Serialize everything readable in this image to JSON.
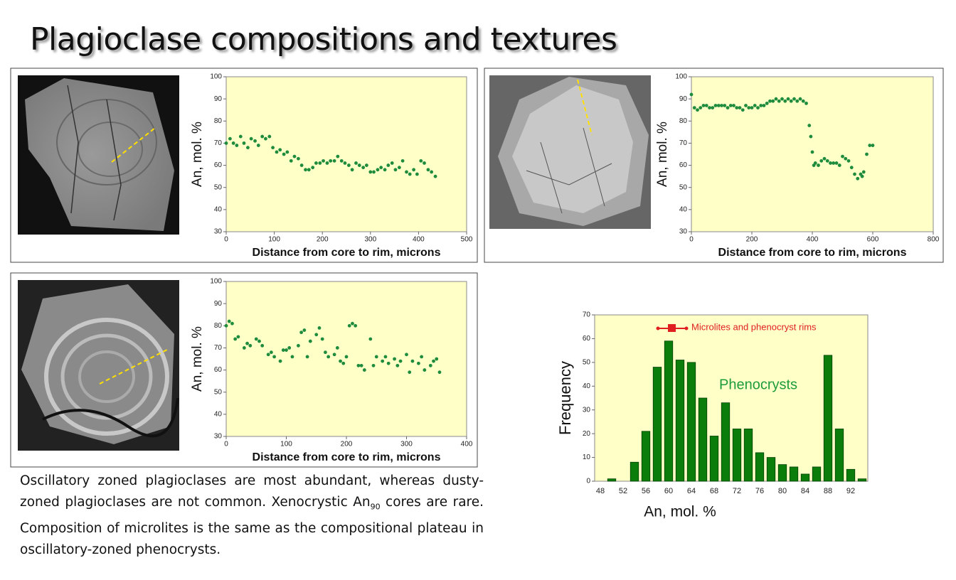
{
  "title": "Plagioclase compositions and textures",
  "caption": [
    "Oscillatory zoned plagioclases are most abundant, whereas dusty-zoned plagioclases are not common. Xenocrystic An",
    "90",
    " cores are rare. Composition of microlites is the same as the compositional plateau in oscillatory-zoned phenocrysts."
  ],
  "chart_data": [
    {
      "type": "scatter",
      "xlabel": "Distance from core to rim, microns",
      "ylabel": "An, mol. %",
      "color": "#1e8c3c",
      "x": [
        0,
        8,
        15,
        22,
        30,
        37,
        45,
        52,
        60,
        67,
        75,
        82,
        90,
        97,
        105,
        112,
        120,
        127,
        135,
        142,
        150,
        157,
        165,
        172,
        180,
        187,
        195,
        202,
        210,
        217,
        225,
        232,
        240,
        247,
        255,
        262,
        270,
        277,
        285,
        292,
        300,
        307,
        315,
        322,
        330,
        337,
        345,
        352,
        360,
        367,
        375,
        382,
        390,
        397,
        405,
        412,
        420,
        427,
        435
      ],
      "y": [
        70,
        72,
        70,
        69,
        73,
        70,
        68,
        72,
        71,
        69,
        73,
        72,
        73,
        68,
        66,
        67,
        65,
        66,
        62,
        64,
        63,
        60,
        58,
        58,
        59,
        61,
        61,
        62,
        61,
        62,
        62,
        64,
        62,
        61,
        60,
        58,
        61,
        60,
        59,
        60,
        57,
        57,
        58,
        59,
        58,
        60,
        61,
        58,
        59,
        62,
        57,
        56,
        58,
        56,
        62,
        61,
        58,
        57,
        55
      ],
      "xlim": [
        0,
        500
      ],
      "xticks": [
        0,
        100,
        200,
        300,
        400,
        500
      ],
      "ylim": [
        30,
        100
      ],
      "yticks": [
        30,
        40,
        50,
        60,
        70,
        80,
        90,
        100
      ]
    },
    {
      "type": "scatter",
      "xlabel": "Distance from core to rim, microns",
      "ylabel": "An, mol. %",
      "color": "#1e8c3c",
      "x": [
        0,
        10,
        20,
        30,
        40,
        50,
        60,
        70,
        80,
        90,
        100,
        110,
        120,
        130,
        140,
        150,
        160,
        170,
        180,
        190,
        200,
        210,
        220,
        230,
        240,
        250,
        260,
        270,
        280,
        290,
        300,
        310,
        320,
        330,
        340,
        350,
        360,
        370,
        380,
        390,
        395,
        400,
        405,
        410,
        420,
        430,
        440,
        450,
        460,
        470,
        480,
        490,
        500,
        510,
        520,
        530,
        540,
        550,
        560,
        565,
        570,
        580,
        590,
        600
      ],
      "y": [
        92,
        86,
        85,
        86,
        87,
        87,
        86,
        86,
        87,
        87,
        87,
        87,
        86,
        87,
        87,
        86,
        86,
        85,
        87,
        86,
        86,
        87,
        86,
        87,
        87,
        88,
        89,
        89,
        90,
        89,
        90,
        89,
        90,
        89,
        90,
        89,
        90,
        89,
        88,
        78,
        73,
        66,
        60,
        61,
        60,
        62,
        63,
        62,
        61,
        61,
        61,
        60,
        64,
        63,
        62,
        59,
        56,
        54,
        56,
        55,
        57,
        65,
        69,
        69
      ],
      "xlim": [
        0,
        800
      ],
      "xticks": [
        0,
        200,
        400,
        600,
        800
      ],
      "ylim": [
        30,
        100
      ],
      "yticks": [
        30,
        40,
        50,
        60,
        70,
        80,
        90,
        100
      ]
    },
    {
      "type": "scatter",
      "xlabel": "Distance from core to rim, microns",
      "ylabel": "An, mol. %",
      "color": "#1e8c3c",
      "x": [
        0,
        5,
        10,
        15,
        20,
        30,
        35,
        40,
        50,
        55,
        60,
        70,
        75,
        80,
        90,
        95,
        100,
        105,
        110,
        120,
        125,
        130,
        135,
        140,
        150,
        155,
        160,
        165,
        170,
        180,
        185,
        190,
        195,
        200,
        205,
        210,
        215,
        220,
        225,
        230,
        240,
        245,
        250,
        260,
        265,
        270,
        280,
        285,
        290,
        300,
        305,
        310,
        320,
        325,
        330,
        340,
        345,
        350,
        355
      ],
      "y": [
        80,
        82,
        81,
        74,
        75,
        70,
        72,
        71,
        74,
        73,
        71,
        67,
        68,
        66,
        64,
        69,
        69,
        70,
        66,
        71,
        77,
        78,
        66,
        73,
        76,
        79,
        74,
        68,
        66,
        67,
        70,
        64,
        63,
        66,
        80,
        81,
        80,
        62,
        62,
        60,
        74,
        62,
        66,
        64,
        66,
        63,
        65,
        62,
        64,
        67,
        59,
        64,
        63,
        66,
        60,
        62,
        64,
        65,
        59
      ],
      "xlim": [
        0,
        400
      ],
      "xticks": [
        0,
        100,
        200,
        300,
        400
      ],
      "ylim": [
        30,
        100
      ],
      "yticks": [
        30,
        40,
        50,
        60,
        70,
        80,
        90,
        100
      ]
    },
    {
      "type": "bar",
      "xlabel": "An, mol. %",
      "ylabel": "Frequency",
      "color": "#0b7d0b",
      "categories": [
        "48",
        null,
        "52",
        null,
        "56",
        null,
        "60",
        null,
        "64",
        null,
        "68",
        null,
        "72",
        null,
        "76",
        null,
        "80",
        null,
        "84",
        null,
        "88",
        null,
        "92",
        null
      ],
      "values": [
        0,
        1,
        0,
        8,
        21,
        48,
        59,
        51,
        50,
        35,
        19,
        33,
        22,
        22,
        12,
        10,
        7,
        6,
        3,
        6,
        53,
        22,
        5,
        1
      ],
      "ylim": [
        0,
        70
      ],
      "yticks": [
        0,
        10,
        20,
        30,
        40,
        50,
        60,
        70
      ],
      "annotations": [
        {
          "text": "Microlites and phenocryst rims",
          "color": "#e02020"
        },
        {
          "text": "Phenocrysts",
          "color": "#1e9c3c"
        }
      ]
    }
  ]
}
